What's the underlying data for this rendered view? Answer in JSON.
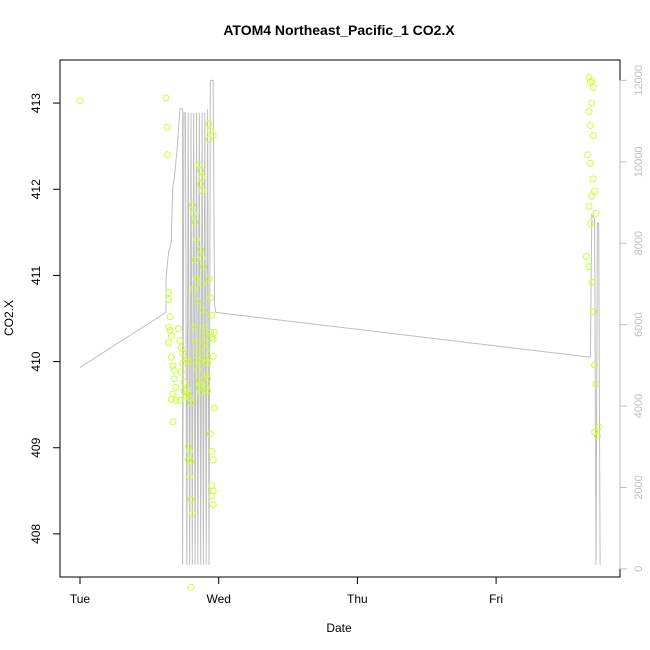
{
  "chart_data": {
    "type": "scatter",
    "title": "ATOM4 Northeast_Pacific_1 CO2.X",
    "xlabel": "Date",
    "ylabel": "CO2.X",
    "x_ticks": [
      "Tue",
      "Wed",
      "Thu",
      "Fri"
    ],
    "y_ticks": [
      408,
      409,
      410,
      411,
      412,
      413
    ],
    "y_right_ticks": [
      0,
      2000,
      4000,
      6000,
      8000,
      10000,
      12000
    ],
    "ylim": [
      407.5,
      413.5
    ],
    "y_right_lim": [
      -200,
      12500
    ],
    "grid": false,
    "legend": "none",
    "colors": {
      "points": "#ccff33",
      "line": "#bebebe",
      "axis": "#000000",
      "right_axis": "#bebebe"
    },
    "series": [
      {
        "kind": "points",
        "axis": "left",
        "points": [
          [
            0.0,
            413.03
          ],
          [
            0.62,
            413.06
          ],
          [
            0.63,
            412.72
          ],
          [
            0.63,
            412.4
          ],
          [
            0.64,
            410.8
          ],
          [
            0.64,
            410.72
          ],
          [
            0.65,
            410.52
          ],
          [
            0.64,
            410.4
          ],
          [
            0.65,
            410.36
          ],
          [
            0.66,
            410.3
          ],
          [
            0.64,
            410.22
          ],
          [
            0.66,
            410.05
          ],
          [
            0.67,
            409.95
          ],
          [
            0.68,
            409.9
          ],
          [
            0.68,
            409.8
          ],
          [
            0.69,
            409.7
          ],
          [
            0.67,
            409.62
          ],
          [
            0.66,
            409.56
          ],
          [
            0.69,
            409.55
          ],
          [
            0.67,
            409.3
          ],
          [
            0.71,
            410.38
          ],
          [
            0.72,
            410.24
          ],
          [
            0.73,
            410.16
          ],
          [
            0.74,
            410.1
          ],
          [
            0.74,
            409.98
          ],
          [
            0.73,
            409.88
          ],
          [
            0.75,
            409.76
          ],
          [
            0.75,
            409.66
          ],
          [
            0.76,
            409.6
          ],
          [
            0.72,
            409.55
          ],
          [
            0.77,
            410.02
          ],
          [
            0.78,
            410.0
          ],
          [
            0.77,
            409.68
          ],
          [
            0.78,
            409.62
          ],
          [
            0.79,
            409.58
          ],
          [
            0.8,
            409.52
          ],
          [
            0.78,
            409.02
          ],
          [
            0.79,
            408.96
          ],
          [
            0.78,
            408.86
          ],
          [
            0.8,
            408.84
          ],
          [
            0.79,
            408.66
          ],
          [
            0.8,
            408.4
          ],
          [
            0.81,
            408.24
          ],
          [
            0.8,
            407.38
          ],
          [
            0.81,
            411.82
          ],
          [
            0.82,
            411.72
          ],
          [
            0.83,
            411.62
          ],
          [
            0.84,
            411.42
          ],
          [
            0.83,
            411.18
          ],
          [
            0.84,
            410.96
          ],
          [
            0.82,
            410.84
          ],
          [
            0.85,
            410.7
          ],
          [
            0.83,
            410.4
          ],
          [
            0.84,
            410.22
          ],
          [
            0.85,
            410.12
          ],
          [
            0.84,
            410.02
          ],
          [
            0.86,
            410.0
          ],
          [
            0.85,
            409.9
          ],
          [
            0.86,
            409.78
          ],
          [
            0.87,
            409.74
          ],
          [
            0.86,
            409.7
          ],
          [
            0.87,
            409.64
          ],
          [
            0.86,
            412.28
          ],
          [
            0.87,
            412.22
          ],
          [
            0.88,
            412.14
          ],
          [
            0.87,
            412.06
          ],
          [
            0.88,
            411.98
          ],
          [
            0.87,
            411.3
          ],
          [
            0.88,
            411.2
          ],
          [
            0.89,
            411.1
          ],
          [
            0.88,
            410.9
          ],
          [
            0.89,
            410.6
          ],
          [
            0.9,
            410.4
          ],
          [
            0.89,
            410.3
          ],
          [
            0.9,
            410.22
          ],
          [
            0.91,
            410.14
          ],
          [
            0.9,
            410.04
          ],
          [
            0.91,
            410.0
          ],
          [
            0.92,
            409.98
          ],
          [
            0.91,
            409.84
          ],
          [
            0.92,
            409.8
          ],
          [
            0.91,
            409.7
          ],
          [
            0.92,
            409.66
          ],
          [
            0.93,
            412.76
          ],
          [
            0.94,
            412.68
          ],
          [
            0.93,
            412.58
          ],
          [
            0.96,
            412.62
          ],
          [
            0.93,
            410.96
          ],
          [
            0.94,
            410.74
          ],
          [
            0.95,
            410.54
          ],
          [
            0.94,
            410.34
          ],
          [
            0.95,
            410.28
          ],
          [
            0.96,
            410.26
          ],
          [
            0.97,
            410.34
          ],
          [
            0.96,
            410.06
          ],
          [
            0.97,
            409.46
          ],
          [
            0.95,
            408.96
          ],
          [
            0.96,
            408.86
          ],
          [
            0.95,
            408.56
          ],
          [
            0.96,
            408.5
          ],
          [
            0.95,
            408.44
          ],
          [
            0.96,
            408.34
          ],
          [
            0.94,
            409.16
          ],
          [
            3.67,
            413.3
          ],
          [
            3.68,
            413.24
          ],
          [
            3.69,
            413.26
          ],
          [
            3.7,
            413.18
          ],
          [
            3.67,
            412.9
          ],
          [
            3.69,
            413.0
          ],
          [
            3.68,
            412.74
          ],
          [
            3.7,
            412.62
          ],
          [
            3.66,
            412.4
          ],
          [
            3.68,
            412.3
          ],
          [
            3.7,
            412.12
          ],
          [
            3.71,
            411.98
          ],
          [
            3.69,
            411.92
          ],
          [
            3.67,
            411.8
          ],
          [
            3.72,
            411.72
          ],
          [
            3.68,
            411.6
          ],
          [
            3.65,
            411.22
          ],
          [
            3.67,
            411.1
          ],
          [
            3.69,
            410.92
          ],
          [
            3.7,
            410.58
          ],
          [
            3.71,
            409.96
          ],
          [
            3.72,
            409.74
          ],
          [
            3.73,
            409.14
          ],
          [
            3.74,
            409.24
          ],
          [
            3.71,
            409.18
          ]
        ]
      },
      {
        "kind": "line",
        "axis": "right",
        "points": [
          [
            0.0,
            4950
          ],
          [
            0.62,
            6300
          ],
          [
            0.62,
            7100
          ],
          [
            0.63,
            7500
          ],
          [
            0.64,
            7800
          ],
          [
            0.65,
            7900
          ],
          [
            0.66,
            8100
          ],
          [
            0.66,
            8300
          ],
          [
            0.67,
            9400
          ],
          [
            0.68,
            9600
          ],
          [
            0.7,
            10300
          ],
          [
            0.72,
            11300
          ],
          [
            0.73,
            11300
          ],
          [
            0.74,
            11300
          ],
          [
            0.74,
            100
          ],
          [
            0.75,
            11200
          ],
          [
            0.76,
            11200
          ],
          [
            0.77,
            100
          ],
          [
            0.78,
            11200
          ],
          [
            0.79,
            100
          ],
          [
            0.8,
            11200
          ],
          [
            0.81,
            100
          ],
          [
            0.82,
            11200
          ],
          [
            0.83,
            100
          ],
          [
            0.84,
            11200
          ],
          [
            0.85,
            100
          ],
          [
            0.86,
            11200
          ],
          [
            0.87,
            100
          ],
          [
            0.88,
            11200
          ],
          [
            0.89,
            100
          ],
          [
            0.9,
            11200
          ],
          [
            0.91,
            100
          ],
          [
            0.92,
            11300
          ],
          [
            0.93,
            100
          ],
          [
            0.94,
            12000
          ],
          [
            0.96,
            12000
          ],
          [
            0.97,
            6500
          ],
          [
            0.98,
            6300
          ],
          [
            3.68,
            5200
          ],
          [
            3.69,
            8700
          ],
          [
            3.71,
            8600
          ],
          [
            3.72,
            100
          ],
          [
            3.73,
            8500
          ],
          [
            3.74,
            8500
          ],
          [
            3.75,
            100
          ]
        ]
      }
    ]
  }
}
